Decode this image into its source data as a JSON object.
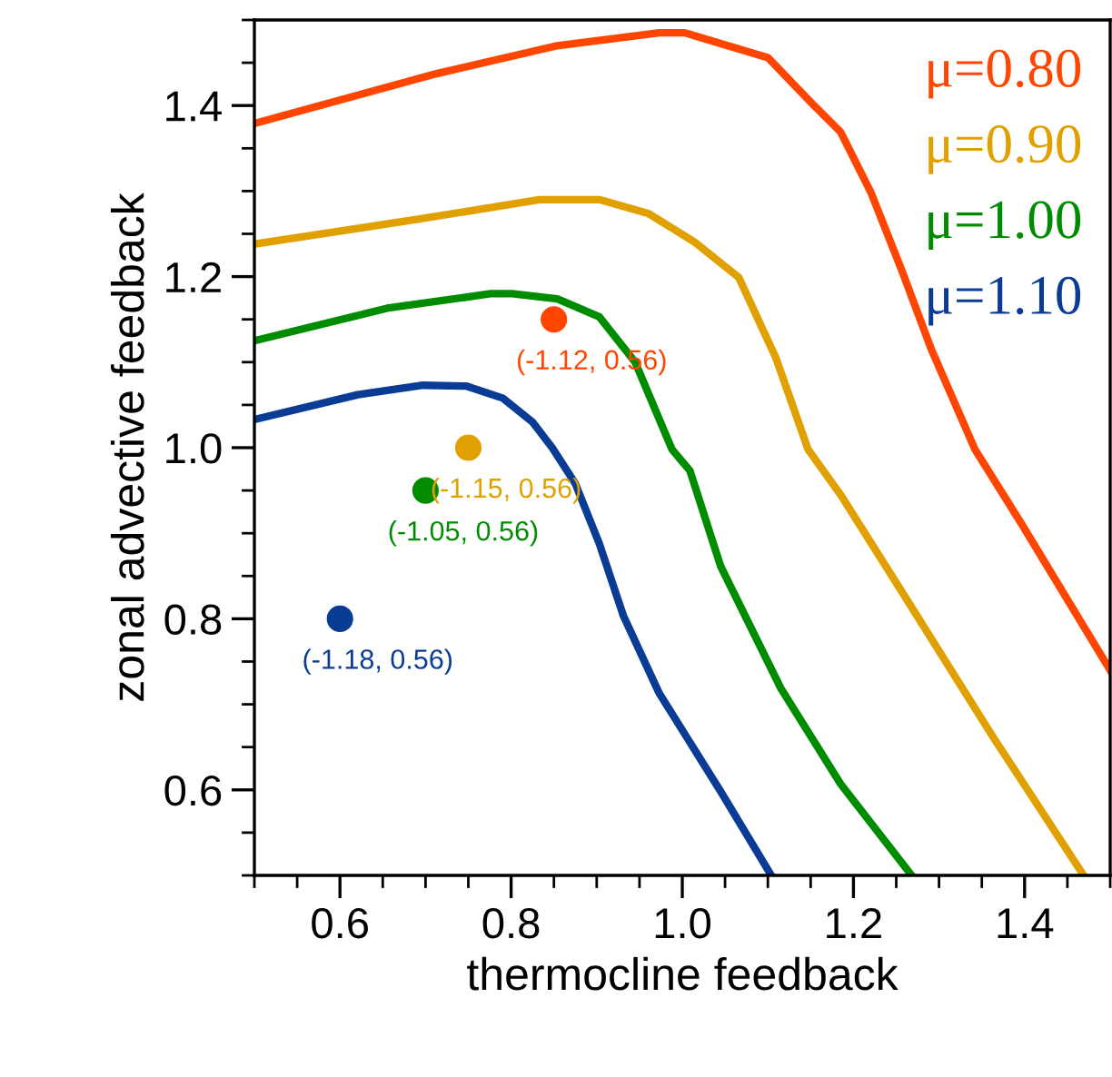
{
  "chart_data": {
    "type": "line",
    "xlabel": "thermocline feedback",
    "ylabel": "zonal advective feedback",
    "xlim": [
      0.5,
      1.5
    ],
    "ylim": [
      0.5,
      1.5
    ],
    "xticks": [
      {
        "value": 0.5,
        "label": null
      },
      {
        "value": 0.55,
        "label": null
      },
      0.6,
      {
        "value": 0.65,
        "label": null
      },
      {
        "value": 0.7,
        "label": null
      },
      {
        "value": 0.75,
        "label": null
      },
      0.8,
      {
        "value": 0.85,
        "label": null
      },
      {
        "value": 0.9,
        "label": null
      },
      {
        "value": 0.95,
        "label": null
      },
      {
        "value": 1.0,
        "label": "1.0"
      },
      {
        "value": 1.05,
        "label": null
      },
      {
        "value": 1.1,
        "label": null
      },
      {
        "value": 1.15,
        "label": null
      },
      1.2,
      {
        "value": 1.25,
        "label": null
      },
      {
        "value": 1.3,
        "label": null
      },
      {
        "value": 1.35,
        "label": null
      },
      1.4,
      {
        "value": 1.45,
        "label": null
      },
      {
        "value": 1.5,
        "label": null
      }
    ],
    "yticks": [
      {
        "value": 0.5,
        "label": null
      },
      {
        "value": 0.55,
        "label": null
      },
      0.6,
      {
        "value": 0.65,
        "label": null
      },
      {
        "value": 0.7,
        "label": null
      },
      {
        "value": 0.75,
        "label": null
      },
      0.8,
      {
        "value": 0.85,
        "label": null
      },
      {
        "value": 0.9,
        "label": null
      },
      {
        "value": 0.95,
        "label": null
      },
      {
        "value": 1.0,
        "label": "1.0"
      },
      {
        "value": 1.05,
        "label": null
      },
      {
        "value": 1.1,
        "label": null
      },
      {
        "value": 1.15,
        "label": null
      },
      1.2,
      {
        "value": 1.25,
        "label": null
      },
      {
        "value": 1.3,
        "label": null
      },
      {
        "value": 1.35,
        "label": null
      },
      1.4,
      {
        "value": 1.45,
        "label": null
      },
      {
        "value": 1.5,
        "label": null
      }
    ],
    "grid": false,
    "legend": "top right",
    "marker": "none",
    "line_style": "solid",
    "series": [
      {
        "name": "μ=0.80",
        "color": "#ff4500",
        "x": [
          0.5,
          0.712,
          0.854,
          0.973,
          1.003,
          1.1,
          1.151,
          1.185,
          1.221,
          1.257,
          1.291,
          1.342,
          1.397,
          1.5
        ],
        "values": [
          1.379,
          1.437,
          1.47,
          1.485,
          1.485,
          1.456,
          1.403,
          1.369,
          1.297,
          1.206,
          1.115,
          0.998,
          0.91,
          0.74
        ]
      },
      {
        "name": "μ=0.90",
        "color": "#e0a000",
        "x": [
          0.5,
          0.691,
          0.833,
          0.903,
          0.96,
          1.015,
          1.066,
          1.109,
          1.147,
          1.185,
          1.257,
          1.363,
          1.469
        ],
        "values": [
          1.238,
          1.267,
          1.29,
          1.29,
          1.274,
          1.24,
          1.199,
          1.106,
          0.998,
          0.945,
          0.831,
          0.662,
          0.5
        ]
      },
      {
        "name": "μ=1.00",
        "color": "#008c00",
        "x": [
          0.5,
          0.655,
          0.776,
          0.801,
          0.854,
          0.903,
          0.945,
          0.988,
          1.009,
          1.045,
          1.115,
          1.185,
          1.268
        ],
        "values": [
          1.125,
          1.163,
          1.18,
          1.18,
          1.174,
          1.153,
          1.1,
          0.998,
          0.973,
          0.861,
          0.719,
          0.607,
          0.5
        ]
      },
      {
        "name": "μ=1.10",
        "color": "#0a3c96",
        "x": [
          0.5,
          0.621,
          0.697,
          0.748,
          0.79,
          0.825,
          0.848,
          0.875,
          0.903,
          0.931,
          0.973,
          1.045,
          1.104
        ],
        "values": [
          1.033,
          1.062,
          1.073,
          1.072,
          1.058,
          1.03,
          1.0,
          0.958,
          0.888,
          0.804,
          0.713,
          0.598,
          0.5
        ]
      },
      {
        "type": "scatter",
        "marker": "circle",
        "color": "#ff4500",
        "x": [
          0.85
        ],
        "values": [
          1.15
        ],
        "value_labels": [
          "(-1.12, 0.56)"
        ]
      },
      {
        "type": "scatter",
        "marker": "circle",
        "color": "#e0a000",
        "x": [
          0.75
        ],
        "values": [
          1.0
        ],
        "value_labels": [
          "(-1.15, 0.56)"
        ]
      },
      {
        "type": "scatter",
        "marker": "circle",
        "color": "#008c00",
        "x": [
          0.7
        ],
        "values": [
          0.95
        ],
        "value_labels": [
          "(-1.05, 0.56)"
        ]
      },
      {
        "type": "scatter",
        "marker": "circle",
        "color": "#0a3c96",
        "x": [
          0.6
        ],
        "values": [
          0.8
        ],
        "value_labels": [
          "(-1.18, 0.56)"
        ]
      }
    ]
  }
}
